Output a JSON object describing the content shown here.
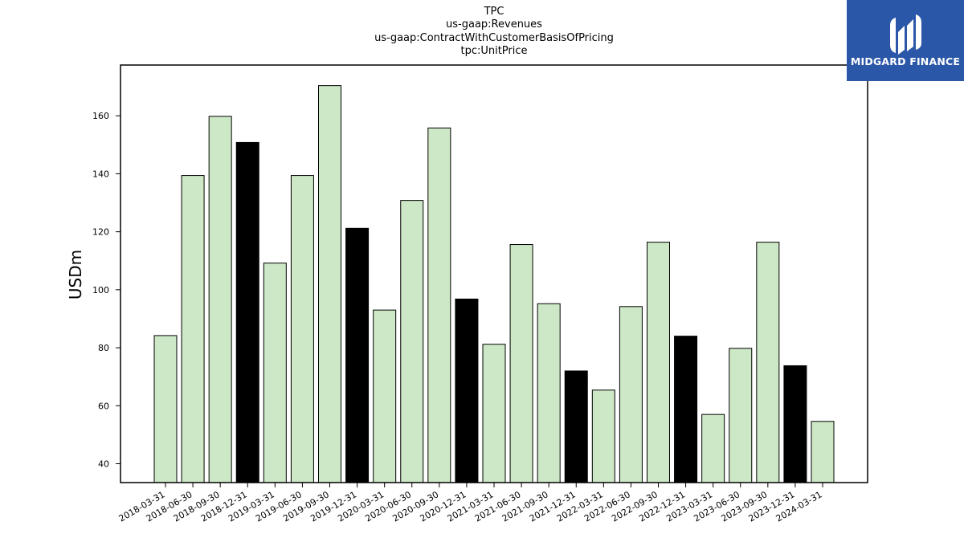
{
  "chart_data": {
    "type": "bar",
    "title": [
      "TPC",
      "us-gaap:Revenues",
      "us-gaap:ContractWithCustomerBasisOfPricing",
      "tpc:UnitPrice"
    ],
    "ylabel": "USDm",
    "xlabel": "",
    "ylim": [
      33.5,
      177.5
    ],
    "yticks": [
      40,
      60,
      80,
      100,
      120,
      140,
      160
    ],
    "grid": false,
    "categories": [
      "2018-03-31",
      "2018-06-30",
      "2018-09-30",
      "2018-12-31",
      "2019-03-31",
      "2019-06-30",
      "2019-09-30",
      "2019-12-31",
      "2020-03-31",
      "2020-06-30",
      "2020-09-30",
      "2020-12-31",
      "2021-03-31",
      "2021-06-30",
      "2021-09-30",
      "2021-12-31",
      "2022-03-31",
      "2022-06-30",
      "2022-09-30",
      "2022-12-31",
      "2023-03-31",
      "2023-06-30",
      "2023-09-30",
      "2023-12-31",
      "2024-03-31"
    ],
    "values": [
      84.2,
      139.4,
      159.8,
      150.8,
      109.2,
      139.4,
      170.4,
      121.2,
      93.0,
      130.8,
      155.8,
      96.8,
      81.2,
      115.6,
      95.2,
      72.0,
      65.4,
      94.2,
      116.4,
      84.0,
      57.0,
      79.8,
      116.4,
      73.8,
      54.6
    ],
    "colors": {
      "quarter": "#cde8c6",
      "year_end": "#000000",
      "edge": "#000000"
    }
  },
  "logo": {
    "text": "MIDGARD FINANCE",
    "icon": "midgard-logo-icon",
    "bg": "#2b57a8"
  }
}
